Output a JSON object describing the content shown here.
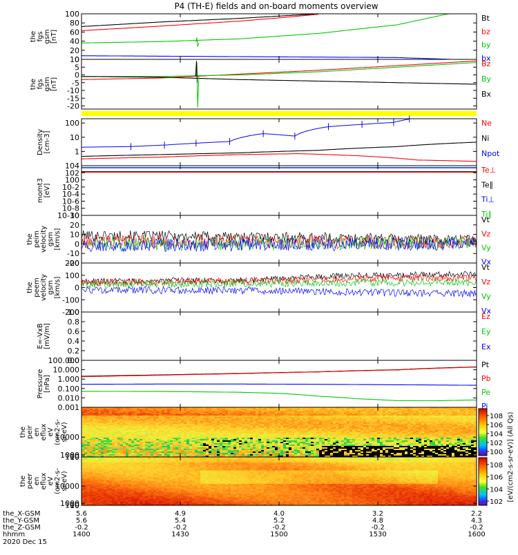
{
  "title": "P4 (TH-E) fields and on-board moments overview",
  "colors": {
    "black": "#000000",
    "red": "#ff0000",
    "green": "#00c800",
    "blue": "#0000ff",
    "yellow": "#ffff00"
  },
  "chart_data": [
    {
      "id": "fgs_gsm_pos",
      "type": "line",
      "ylabel": [
        "the",
        "fgs",
        "gsm",
        "[nT]"
      ],
      "ylim": [
        0,
        100
      ],
      "yticks": [
        "0",
        "20",
        "40",
        "60",
        "80",
        "100"
      ],
      "tickvals": [
        0,
        20,
        40,
        60,
        80,
        100
      ],
      "legend": [
        {
          "label": "Bt",
          "color": "black"
        },
        {
          "label": "bz",
          "color": "red"
        },
        {
          "label": "by",
          "color": "green"
        },
        {
          "label": "bx",
          "color": "blue"
        }
      ],
      "series": [
        {
          "name": "Bt",
          "color": "black",
          "x": [
            0,
            0.2,
            0.4,
            0.5,
            0.6,
            0.7
          ],
          "y": [
            72,
            82,
            90,
            95,
            100,
            104
          ]
        },
        {
          "name": "bz",
          "color": "red",
          "x": [
            0,
            0.2,
            0.4,
            0.5,
            0.6
          ],
          "y": [
            63,
            73,
            84,
            91,
            99
          ]
        },
        {
          "name": "by",
          "color": "green",
          "x": [
            0,
            0.2,
            0.4,
            0.6,
            0.8,
            0.95
          ],
          "y": [
            36,
            39,
            45,
            57,
            76,
            104
          ]
        },
        {
          "name": "bx",
          "color": "blue",
          "x": [
            0,
            0.2,
            0.4,
            0.6,
            0.8,
            1.0
          ],
          "y": [
            8,
            7,
            6,
            5,
            4,
            -2
          ]
        }
      ]
    },
    {
      "id": "fgs_gsm_neg",
      "type": "line",
      "ylabel": [
        "the",
        "fgs",
        "gsm",
        "[nT]"
      ],
      "ylim": [
        -22,
        10
      ],
      "yticks": [
        "-20",
        "-15",
        "-10",
        "-5",
        "0",
        "5",
        "10"
      ],
      "tickvals": [
        -20,
        -15,
        -10,
        -5,
        0,
        5,
        10
      ],
      "legend": [
        {
          "label": "Bz",
          "color": "red"
        },
        {
          "label": "By",
          "color": "green"
        },
        {
          "label": "Bx",
          "color": "black"
        }
      ],
      "series": [
        {
          "name": "Bz",
          "color": "red",
          "x": [
            0,
            0.2,
            0.4,
            0.6,
            0.8,
            1.0
          ],
          "y": [
            -3,
            -2,
            0.5,
            3,
            6,
            9
          ]
        },
        {
          "name": "By",
          "color": "green",
          "x": [
            0,
            0.2,
            0.4,
            0.6,
            0.8,
            1.0
          ],
          "y": [
            -1,
            -1,
            0,
            2,
            5,
            8
          ]
        },
        {
          "name": "Bx",
          "color": "black",
          "x": [
            0,
            0.2,
            0.4,
            0.6,
            0.8,
            1.0
          ],
          "y": [
            -1,
            -1.5,
            -3,
            -4,
            -5,
            -6
          ]
        }
      ]
    },
    {
      "id": "density",
      "type": "line",
      "yscale": "log",
      "ylabel": [
        "Density",
        "[cm-3]"
      ],
      "ylim": [
        0.1,
        200
      ],
      "yticks": [
        "1",
        "10",
        "100"
      ],
      "tickvals": [
        1,
        10,
        100
      ],
      "legend": [
        {
          "label": "Ne",
          "color": "red"
        },
        {
          "label": "Ni",
          "color": "black"
        },
        {
          "label": "Npot",
          "color": "blue"
        }
      ],
      "series": [
        {
          "name": "Npot",
          "color": "blue",
          "x": [
            0,
            0.125,
            0.21,
            0.29,
            0.375,
            0.46,
            0.54,
            0.625,
            0.71,
            0.79,
            0.83
          ],
          "y": [
            2,
            2.2,
            2.8,
            3.8,
            5,
            18,
            12,
            55,
            80,
            110,
            190
          ]
        },
        {
          "name": "Ni",
          "color": "black",
          "x": [
            0,
            0.2,
            0.4,
            0.6,
            0.8,
            1.0
          ],
          "y": [
            0.45,
            0.6,
            0.8,
            1.2,
            2.2,
            4.5
          ]
        },
        {
          "name": "Ne",
          "color": "red",
          "x": [
            0,
            0.2,
            0.4,
            0.55,
            0.7,
            0.85,
            1.0
          ],
          "y": [
            0.3,
            0.4,
            0.6,
            0.7,
            0.5,
            0.25,
            0.2
          ]
        }
      ]
    },
    {
      "id": "mom_temp",
      "type": "line",
      "yscale": "log",
      "ylabel": [
        "momt3",
        "[eV]"
      ],
      "ylim": [
        1e-10,
        10000
      ],
      "yticks": [
        "10-10",
        "10-8",
        "10-6",
        "10-4",
        "10-2",
        "100",
        "102",
        "104"
      ],
      "tickvals": [
        1e-10,
        1e-08,
        1e-06,
        0.0001,
        0.01,
        1,
        100,
        10000
      ],
      "legend": [
        {
          "label": "Te⊥",
          "color": "red"
        },
        {
          "label": "Te∥",
          "color": "black"
        },
        {
          "label": "Ti⊥",
          "color": "blue"
        },
        {
          "label": "Ti∥",
          "color": "green"
        }
      ],
      "series": [
        {
          "name": "Ti∥",
          "color": "green",
          "x": [
            0,
            1.0
          ],
          "y": [
            3000,
            3000
          ]
        },
        {
          "name": "Ti⊥",
          "color": "blue",
          "x": [
            0,
            1.0
          ],
          "y": [
            2500,
            2500
          ]
        },
        {
          "name": "Te∥",
          "color": "black",
          "x": [
            0,
            1.0
          ],
          "y": [
            200,
            200
          ]
        },
        {
          "name": "Te⊥",
          "color": "red",
          "x": [
            0,
            1.0
          ],
          "y": [
            150,
            150
          ]
        }
      ]
    },
    {
      "id": "peim_velocity",
      "type": "line",
      "ylabel": [
        "the",
        "peim",
        "velocity",
        "gsm",
        "[km/s]"
      ],
      "ylim": [
        -20,
        30
      ],
      "yticks": [
        "-20",
        "-10",
        "0",
        "10",
        "20",
        "30"
      ],
      "tickvals": [
        -20,
        -10,
        0,
        10,
        20,
        30
      ],
      "legend": [
        {
          "label": "Vt",
          "color": "black"
        },
        {
          "label": "Vz",
          "color": "red"
        },
        {
          "label": "Vy",
          "color": "green"
        },
        {
          "label": "Vx",
          "color": "blue"
        }
      ],
      "series": [
        {
          "name": "Vt",
          "color": "black",
          "x": [
            0,
            0.3,
            0.7,
            1.0
          ],
          "y": [
            9,
            8,
            6,
            4
          ]
        },
        {
          "name": "Vz",
          "color": "red",
          "x": [
            0,
            0.3,
            0.7,
            1.0
          ],
          "y": [
            3,
            3,
            2,
            2
          ]
        },
        {
          "name": "Vy",
          "color": "green",
          "x": [
            0,
            0.3,
            0.7,
            1.0
          ],
          "y": [
            0,
            0,
            1,
            1
          ]
        },
        {
          "name": "Vx",
          "color": "blue",
          "x": [
            0,
            0.3,
            0.7,
            1.0
          ],
          "y": [
            -1,
            -1,
            0,
            0
          ]
        }
      ]
    },
    {
      "id": "peem_velocity",
      "type": "line",
      "ylabel": [
        "the",
        "peem",
        "velocity",
        "gsm",
        "[km/s]"
      ],
      "ylim": [
        -200,
        200
      ],
      "yticks": [
        "-200",
        "-100",
        "0",
        "100",
        "200"
      ],
      "tickvals": [
        -200,
        -100,
        0,
        100,
        200
      ],
      "legend": [
        {
          "label": "Vt",
          "color": "black"
        },
        {
          "label": "Vz",
          "color": "red"
        },
        {
          "label": "Vy",
          "color": "green"
        },
        {
          "label": "Vx",
          "color": "blue"
        }
      ],
      "series": [
        {
          "name": "Vt",
          "color": "black",
          "x": [
            0,
            0.4,
            0.7,
            1.0
          ],
          "y": [
            50,
            60,
            100,
            110
          ]
        },
        {
          "name": "Vz",
          "color": "red",
          "x": [
            0,
            0.4,
            0.7,
            1.0
          ],
          "y": [
            40,
            50,
            70,
            80
          ]
        },
        {
          "name": "Vy",
          "color": "green",
          "x": [
            0,
            0.4,
            0.7,
            1.0
          ],
          "y": [
            20,
            30,
            40,
            40
          ]
        },
        {
          "name": "Vx",
          "color": "blue",
          "x": [
            0,
            0.4,
            0.7,
            1.0
          ],
          "y": [
            -20,
            -25,
            -40,
            -50
          ]
        }
      ]
    },
    {
      "id": "efield",
      "type": "line",
      "ylabel": [
        "E=-VxB",
        "[mV/m]"
      ],
      "ylim": [
        0,
        1
      ],
      "yticks": [
        "0.0",
        "0.2",
        "0.4",
        "0.6",
        "0.8",
        "1.0"
      ],
      "tickvals": [
        0,
        0.2,
        0.4,
        0.6,
        0.8,
        1.0
      ],
      "legend": [
        {
          "label": "Ez",
          "color": "red"
        },
        {
          "label": "Ey",
          "color": "green"
        },
        {
          "label": "Ex",
          "color": "blue"
        }
      ],
      "series": []
    },
    {
      "id": "pressure",
      "type": "line",
      "yscale": "log",
      "ylabel": [
        "Pressure",
        "[nPa]"
      ],
      "ylim": [
        0.001,
        100
      ],
      "yticks": [
        "0.001",
        "0.010",
        "0.100",
        "1.000",
        "10.000",
        "100.000"
      ],
      "tickvals": [
        0.001,
        0.01,
        0.1,
        1,
        10,
        100
      ],
      "legend": [
        {
          "label": "Pt",
          "color": "black"
        },
        {
          "label": "Pb",
          "color": "red"
        },
        {
          "label": "Pe",
          "color": "green"
        },
        {
          "label": "Pi",
          "color": "blue"
        }
      ],
      "series": [
        {
          "name": "Pt",
          "color": "black",
          "x": [
            0,
            0.2,
            0.4,
            0.6,
            0.8,
            1.0
          ],
          "y": [
            2,
            2.8,
            4,
            6,
            10,
            20
          ]
        },
        {
          "name": "Pb",
          "color": "red",
          "x": [
            0,
            0.2,
            0.4,
            0.6,
            0.8,
            1.0
          ],
          "y": [
            1.8,
            2.6,
            3.8,
            5.8,
            9.5,
            19
          ]
        },
        {
          "name": "Pi",
          "color": "blue",
          "x": [
            0,
            0.2,
            0.4,
            0.6,
            0.8,
            1.0
          ],
          "y": [
            0.28,
            0.3,
            0.3,
            0.28,
            0.25,
            0.22
          ]
        },
        {
          "name": "Pe",
          "color": "green",
          "x": [
            0,
            0.2,
            0.4,
            0.5,
            0.6,
            0.7,
            0.8,
            0.9,
            1.0
          ],
          "y": [
            0.05,
            0.048,
            0.04,
            0.03,
            0.015,
            0.008,
            0.005,
            0.005,
            0.006
          ]
        }
      ]
    },
    {
      "id": "peir_spec",
      "type": "heatmap",
      "ylabel": [
        "the",
        "peir",
        "en",
        "eflux",
        "eV",
        "(cm2-s-",
        "sr-eV)"
      ],
      "ylim": [
        5,
        25000
      ],
      "yticks": [
        "10",
        "100",
        "1000",
        "10000"
      ],
      "tickvals": [
        10,
        100,
        1000,
        10000
      ]
    },
    {
      "id": "peer_spec",
      "type": "heatmap",
      "ylabel": [
        "the",
        "peer",
        "en",
        "eflux",
        "eV",
        "(cm2-s-",
        "sr-eV)"
      ],
      "ylim": [
        5,
        25000
      ],
      "yticks": [
        "10",
        "100",
        "1000",
        "10000"
      ],
      "tickvals": [
        10,
        100,
        1000,
        10000
      ]
    }
  ],
  "colorbar": {
    "label": "[eV/(cm2-s-sr-eV)] (All Qs)",
    "ticks_top": [
      "108",
      "106",
      "104",
      "102",
      "100"
    ],
    "ticks_bottom": [
      "108",
      "106",
      "104",
      "102"
    ]
  },
  "xaxis": {
    "row_labels": [
      "the_X-GSM",
      "the_Y-GSM",
      "the_Z-GSM",
      "hhmm",
      "2020 Dec 15"
    ],
    "columns": [
      [
        "5.6",
        "5.6",
        "-0.2",
        "1400"
      ],
      [
        "4.9",
        "5.4",
        "-0.2",
        "1430"
      ],
      [
        "4.0",
        "5.2",
        "-0.2",
        "1500"
      ],
      [
        "3.2",
        "4.8",
        "-0.2",
        "1530"
      ],
      [
        "2.2",
        "4.3",
        "-0.2",
        "1600"
      ]
    ]
  }
}
